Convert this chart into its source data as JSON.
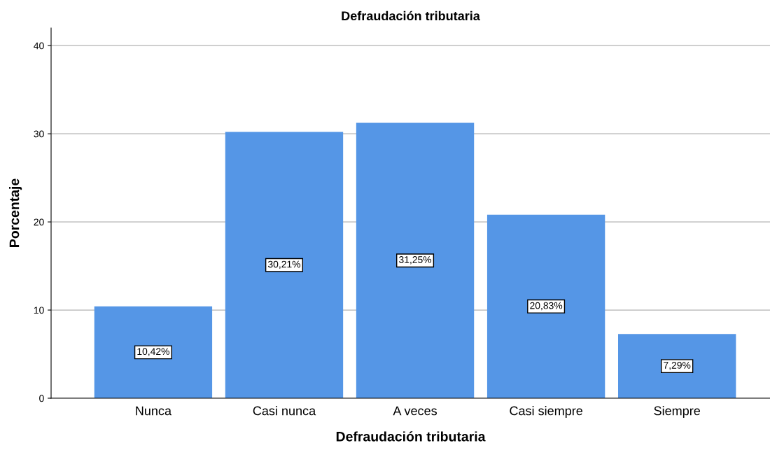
{
  "chart_data": {
    "type": "bar",
    "title": "Defraudación tributaria",
    "xlabel": "Defraudación tributaria",
    "ylabel": "Porcentaje",
    "categories": [
      "Nunca",
      "Casi nunca",
      "A veces",
      "Casi siempre",
      "Siempre"
    ],
    "values": [
      10.42,
      30.21,
      31.25,
      20.83,
      7.29
    ],
    "value_labels": [
      "10,42%",
      "30,21%",
      "31,25%",
      "20,83%",
      "7,29%"
    ],
    "color": "#5596e6",
    "ylim": [
      0,
      42
    ],
    "yticks": [
      0,
      10,
      20,
      30,
      40
    ],
    "grid": "y",
    "legend": false
  }
}
